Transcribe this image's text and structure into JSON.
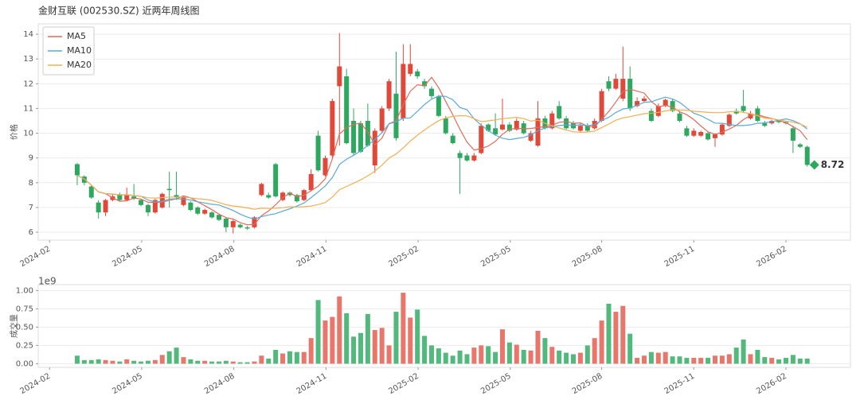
{
  "chart_data": [
    {
      "type": "candlestick",
      "title": "金财互联 (002530.SZ) 近两年周线图",
      "ylabel": "价格",
      "xlim": [
        -5.5,
        109.1
      ],
      "xticks": [
        {
          "value": -3.9,
          "label": "2024-02"
        },
        {
          "value": 9.1,
          "label": "2024-05"
        },
        {
          "value": 22.1,
          "label": "2024-08"
        },
        {
          "value": 35.1,
          "label": "2024-11"
        },
        {
          "value": 48.1,
          "label": "2025-02"
        },
        {
          "value": 61.1,
          "label": "2025-05"
        },
        {
          "value": 74,
          "label": "2025-08"
        },
        {
          "value": 87,
          "label": "2025-11"
        },
        {
          "value": 100,
          "label": "2026-02"
        }
      ],
      "ylim": [
        5.68,
        14.42
      ],
      "yticks": [
        6,
        7,
        8,
        9,
        10,
        11,
        12,
        13,
        14
      ],
      "grid": true,
      "legend": "upper left",
      "up_color": "#e0483a",
      "down_color": "#2ea85f",
      "open": [
        8.75,
        8.25,
        7.85,
        7.2,
        6.8,
        7.3,
        7.5,
        7.3,
        7.45,
        7.3,
        7.1,
        6.8,
        7.0,
        7.75,
        7.5,
        7.1,
        7.2,
        7.0,
        6.75,
        6.8,
        6.7,
        6.55,
        6.2,
        6.3,
        6.2,
        6.2,
        7.5,
        7.5,
        8.75,
        7.3,
        7.6,
        7.5,
        7.3,
        7.7,
        9.9,
        8.3,
        9.1,
        11.9,
        12.3,
        10.5,
        10.4,
        10.5,
        8.7,
        10.1,
        11.0,
        11.6,
        10.6,
        12.4,
        12.5,
        12.1,
        11.8,
        11.5,
        10.6,
        9.9,
        9.2,
        9.1,
        8.9,
        9.2,
        10.35,
        10.2,
        10.15,
        10.35,
        10.15,
        10.4,
        9.7,
        9.5,
        10.6,
        10.2,
        11.1,
        10.6,
        10.4,
        10.1,
        10.3,
        10.2,
        10.5,
        12.1,
        11.8,
        11.4,
        12.2,
        11.1,
        11.3,
        10.9,
        10.7,
        11.1,
        11.3,
        10.8,
        10.2,
        9.9,
        9.9,
        10.0,
        9.8,
        9.95,
        10.3,
        10.9,
        11.1,
        10.6,
        11.0,
        10.4,
        10.4,
        10.5,
        10.45,
        10.2,
        9.55,
        9.45
      ],
      "high": [
        8.8,
        8.3,
        7.9,
        7.3,
        7.35,
        7.55,
        7.6,
        7.8,
        7.95,
        7.35,
        7.15,
        7.35,
        7.6,
        8.45,
        8.45,
        7.45,
        7.25,
        7.05,
        6.95,
        6.85,
        6.75,
        6.6,
        6.5,
        6.35,
        6.25,
        6.65,
        8.0,
        7.6,
        8.8,
        7.65,
        7.65,
        7.55,
        7.75,
        8.55,
        10.1,
        9.1,
        11.4,
        14.05,
        12.6,
        11.0,
        10.5,
        11.2,
        10.2,
        11.1,
        12.2,
        13.3,
        13.6,
        13.6,
        12.6,
        12.2,
        11.9,
        11.55,
        10.7,
        10.0,
        9.3,
        9.2,
        9.2,
        10.4,
        10.4,
        10.8,
        11.4,
        10.45,
        10.6,
        10.5,
        10.1,
        11.3,
        10.7,
        10.9,
        11.3,
        10.7,
        10.5,
        10.4,
        10.4,
        10.6,
        11.8,
        12.3,
        12.4,
        13.5,
        12.7,
        11.45,
        11.5,
        11.0,
        11.2,
        11.4,
        11.4,
        10.9,
        10.3,
        10.2,
        10.1,
        10.05,
        10.0,
        10.4,
        10.8,
        11.0,
        11.75,
        10.9,
        11.1,
        10.5,
        10.55,
        10.55,
        10.5,
        10.3,
        9.6,
        9.5
      ],
      "low": [
        7.9,
        7.9,
        7.35,
        6.55,
        6.65,
        7.25,
        7.25,
        7.25,
        7.3,
        7.05,
        6.65,
        6.75,
        6.95,
        7.0,
        7.3,
        7.05,
        6.85,
        6.7,
        6.7,
        6.55,
        6.45,
        6.0,
        5.95,
        6.15,
        6.1,
        6.15,
        7.45,
        7.35,
        7.4,
        7.25,
        7.45,
        7.2,
        7.25,
        7.65,
        8.45,
        8.25,
        9.0,
        9.5,
        9.55,
        9.1,
        9.2,
        9.45,
        8.4,
        10.0,
        10.9,
        9.7,
        10.5,
        12.3,
        12.2,
        11.8,
        11.4,
        10.65,
        9.95,
        9.55,
        7.55,
        8.85,
        8.85,
        9.15,
        10.05,
        9.9,
        10.1,
        10.05,
        10.1,
        9.95,
        9.65,
        9.45,
        10.15,
        10.15,
        10.55,
        10.15,
        10.15,
        10.05,
        10.05,
        10.15,
        10.45,
        11.7,
        11.75,
        11.3,
        10.9,
        11.05,
        11.25,
        10.45,
        10.65,
        11.05,
        10.85,
        10.45,
        9.85,
        9.85,
        9.85,
        9.7,
        9.45,
        9.9,
        10.25,
        10.75,
        10.85,
        10.55,
        10.45,
        10.25,
        10.35,
        10.4,
        10.35,
        9.2,
        9.4,
        8.65
      ],
      "close": [
        8.3,
        8.0,
        7.4,
        6.8,
        7.3,
        7.45,
        7.3,
        7.5,
        7.35,
        7.1,
        6.8,
        7.3,
        7.55,
        7.7,
        7.4,
        7.4,
        6.9,
        6.75,
        6.9,
        6.6,
        6.5,
        6.2,
        6.45,
        6.2,
        6.15,
        6.6,
        7.95,
        7.4,
        7.45,
        7.6,
        7.5,
        7.25,
        7.7,
        8.35,
        8.5,
        9.0,
        11.3,
        12.7,
        9.6,
        9.2,
        9.25,
        9.5,
        10.1,
        11.0,
        12.1,
        9.8,
        12.8,
        12.8,
        12.3,
        11.9,
        11.5,
        10.7,
        10.0,
        9.6,
        9.0,
        8.9,
        9.1,
        10.3,
        10.1,
        9.95,
        10.35,
        10.1,
        10.5,
        10.0,
        10.0,
        10.6,
        10.2,
        10.8,
        10.6,
        10.2,
        10.2,
        10.3,
        10.1,
        10.5,
        11.7,
        11.8,
        12.2,
        12.2,
        11.0,
        11.3,
        11.4,
        10.5,
        11.1,
        11.35,
        10.9,
        10.5,
        9.9,
        10.1,
        10.05,
        9.75,
        9.95,
        10.35,
        10.75,
        10.8,
        10.9,
        10.8,
        10.5,
        10.3,
        10.5,
        10.45,
        10.4,
        9.7,
        9.45,
        8.72
      ],
      "series": [
        {
          "name": "MA5",
          "color": "#e06c5a",
          "values": [
            8.3,
            8.15,
            7.9,
            7.63,
            7.56,
            7.39,
            7.25,
            7.27,
            7.38,
            7.34,
            7.21,
            7.21,
            7.22,
            7.29,
            7.35,
            7.47,
            7.39,
            7.23,
            7.07,
            6.91,
            6.73,
            6.59,
            6.53,
            6.39,
            6.3,
            6.32,
            6.67,
            6.86,
            7.11,
            7.4,
            7.58,
            7.44,
            7.5,
            7.68,
            7.86,
            8.16,
            8.97,
            9.97,
            10.22,
            10.36,
            10.41,
            10.05,
            9.53,
            9.81,
            10.39,
            10.5,
            11.16,
            11.7,
            11.96,
            11.92,
            12.26,
            11.84,
            11.28,
            10.74,
            10.16,
            9.64,
            9.32,
            9.38,
            9.48,
            9.67,
            9.96,
            10.16,
            10.2,
            10.18,
            10.19,
            10.24,
            10.26,
            10.32,
            10.44,
            10.48,
            10.4,
            10.42,
            10.28,
            10.26,
            10.56,
            10.88,
            11.26,
            11.68,
            11.78,
            11.7,
            11.62,
            11.28,
            11.06,
            11.13,
            11.05,
            10.87,
            10.75,
            10.55,
            10.29,
            10.06,
            9.95,
            10.04,
            10.17,
            10.32,
            10.55,
            10.72,
            10.75,
            10.66,
            10.6,
            10.51,
            10.43,
            10.27,
            10.1,
            9.74
          ]
        },
        {
          "name": "MA10",
          "color": "#5aa9d6",
          "values": [
            8.3,
            8.15,
            7.9,
            7.63,
            7.56,
            7.54,
            7.51,
            7.51,
            7.49,
            7.45,
            7.3,
            7.23,
            7.25,
            7.34,
            7.35,
            7.34,
            7.3,
            7.23,
            7.18,
            7.13,
            7.1,
            6.99,
            6.88,
            6.73,
            6.61,
            6.53,
            6.63,
            6.7,
            6.75,
            6.85,
            6.95,
            7.06,
            7.18,
            7.4,
            7.63,
            7.87,
            8.21,
            8.74,
            8.95,
            9.11,
            9.29,
            9.51,
            9.75,
            10.02,
            10.38,
            10.46,
            10.61,
            10.62,
            10.89,
            11.16,
            11.38,
            11.5,
            11.49,
            11.35,
            11.04,
            10.95,
            10.58,
            10.33,
            10.11,
            9.92,
            9.8,
            9.74,
            9.79,
            9.83,
            9.93,
            10.1,
            10.21,
            10.26,
            10.31,
            10.34,
            10.32,
            10.34,
            10.3,
            10.35,
            10.52,
            10.64,
            10.84,
            10.98,
            11.02,
            11.13,
            11.25,
            11.27,
            11.37,
            11.46,
            11.38,
            11.25,
            11.02,
            10.81,
            10.71,
            10.56,
            10.41,
            10.4,
            10.36,
            10.31,
            10.31,
            10.34,
            10.4,
            10.42,
            10.46,
            10.53,
            10.58,
            10.51,
            10.38,
            10.17
          ]
        },
        {
          "name": "MA20",
          "color": "#f0b050",
          "values": [
            8.3,
            8.15,
            7.9,
            7.63,
            7.56,
            7.54,
            7.51,
            7.51,
            7.49,
            7.45,
            7.39,
            7.38,
            7.4,
            7.42,
            7.42,
            7.42,
            7.39,
            7.35,
            7.33,
            7.29,
            7.2,
            7.11,
            7.06,
            7.03,
            6.98,
            6.93,
            6.97,
            6.96,
            6.97,
            6.99,
            7.03,
            7.02,
            7.03,
            7.06,
            7.12,
            7.2,
            7.42,
            7.72,
            7.85,
            7.98,
            8.12,
            8.28,
            8.47,
            8.71,
            9.0,
            9.16,
            9.41,
            9.68,
            9.92,
            10.13,
            10.33,
            10.51,
            10.62,
            10.68,
            10.71,
            10.7,
            10.59,
            10.47,
            10.5,
            10.54,
            10.59,
            10.62,
            10.64,
            10.59,
            10.49,
            10.53,
            10.4,
            10.3,
            10.21,
            10.13,
            10.06,
            10.04,
            10.05,
            10.09,
            10.23,
            10.37,
            10.53,
            10.62,
            10.67,
            10.73,
            10.79,
            10.81,
            10.84,
            10.9,
            10.95,
            10.94,
            10.93,
            10.89,
            10.87,
            10.84,
            10.83,
            10.83,
            10.87,
            10.88,
            10.84,
            10.79,
            10.71,
            10.61,
            10.59,
            10.54,
            10.49,
            10.45,
            10.37,
            10.24
          ]
        }
      ]
    },
    {
      "type": "bar",
      "ylabel": "成交量",
      "offset_label": "1e9",
      "xlim": [
        -5.5,
        109.1
      ],
      "xticks": [
        {
          "value": -3.9,
          "label": "2024-02"
        },
        {
          "value": 9.1,
          "label": "2024-05"
        },
        {
          "value": 22.1,
          "label": "2024-08"
        },
        {
          "value": 35.1,
          "label": "2024-11"
        },
        {
          "value": 48.1,
          "label": "2025-02"
        },
        {
          "value": 61.1,
          "label": "2025-05"
        },
        {
          "value": 74,
          "label": "2025-08"
        },
        {
          "value": 87,
          "label": "2025-11"
        },
        {
          "value": 100,
          "label": "2026-02"
        }
      ],
      "ylim": [
        -0.05,
        1.08
      ],
      "yticks": [
        {
          "value": 0,
          "label": "0.00"
        },
        {
          "value": 0.25,
          "label": "0.25"
        },
        {
          "value": 0.5,
          "label": "0.50"
        },
        {
          "value": 0.75,
          "label": "0.75"
        },
        {
          "value": 1,
          "label": "1.00"
        }
      ],
      "grid": true,
      "up_color": "#e8766a",
      "down_color": "#52b97c",
      "values": [
        0.11,
        0.05,
        0.05,
        0.06,
        0.05,
        0.04,
        0.03,
        0.06,
        0.04,
        0.03,
        0.04,
        0.05,
        0.12,
        0.17,
        0.22,
        0.09,
        0.06,
        0.04,
        0.04,
        0.03,
        0.03,
        0.04,
        0.03,
        0.02,
        0.02,
        0.03,
        0.11,
        0.07,
        0.19,
        0.14,
        0.17,
        0.16,
        0.16,
        0.35,
        0.87,
        0.59,
        0.64,
        0.92,
        0.69,
        0.37,
        0.42,
        0.68,
        0.46,
        0.49,
        0.25,
        0.71,
        0.97,
        0.63,
        0.74,
        0.38,
        0.25,
        0.21,
        0.15,
        0.11,
        0.18,
        0.13,
        0.22,
        0.25,
        0.24,
        0.16,
        0.47,
        0.29,
        0.26,
        0.19,
        0.18,
        0.45,
        0.35,
        0.23,
        0.18,
        0.15,
        0.13,
        0.15,
        0.25,
        0.35,
        0.59,
        0.82,
        0.71,
        0.79,
        0.41,
        0.08,
        0.11,
        0.16,
        0.15,
        0.16,
        0.1,
        0.1,
        0.08,
        0.08,
        0.08,
        0.08,
        0.11,
        0.11,
        0.13,
        0.22,
        0.33,
        0.13,
        0.19,
        0.09,
        0.08,
        0.06,
        0.08,
        0.12,
        0.07,
        0.07
      ]
    }
  ]
}
